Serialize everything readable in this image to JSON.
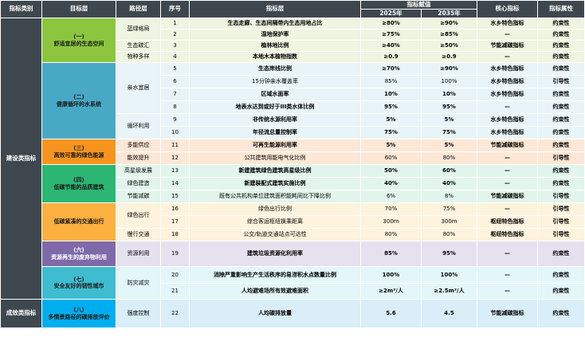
{
  "header": {
    "col_category": "指标类别",
    "col_target": "目标层",
    "col_path": "路径层",
    "col_no": "序号",
    "col_indicator": "指标层",
    "col_value": "指标赋值",
    "col_2025": "2025年",
    "col_2035": "2035年",
    "col_core": "核心指标",
    "col_attr": "指标属性"
  },
  "colors": {
    "header_bg": "#3e474d",
    "group1": "#8cc63f",
    "group2": "#48a9c5",
    "group3": "#f7941d",
    "group4": "#2bb673",
    "group5": "#fbb040",
    "group6": "#7e6aa8",
    "group7": "#3fbcd0",
    "group8": "#00aeef"
  },
  "categories": [
    {
      "label": "建设类指标",
      "rows": 21
    },
    {
      "label": "成效类指标",
      "rows": 1
    }
  ],
  "groups": [
    {
      "label": "(一)\n舒适宜居的生态空间",
      "rows": 4,
      "color": "#8cc63f",
      "light": "#eef5e0",
      "text": "#1a1a1a"
    },
    {
      "label": "(二)\n健康循环的水系统",
      "rows": 6,
      "color": "#48a9c5",
      "light": "#e8f4f8",
      "text": "#1a1a1a"
    },
    {
      "label": "(三)\n高效可靠的绿色能源",
      "rows": 2,
      "color": "#f7941d",
      "light": "#fde7d6",
      "text": "#1a1a1a"
    },
    {
      "label": "(四)\n低碳节能的品质建筑",
      "rows": 3,
      "color": "#2bb673",
      "light": "#e2f5ec",
      "text": "#1a1a1a"
    },
    {
      "label": "低碳紧凑的交通出行",
      "rows": 3,
      "color": "#fbb040",
      "light": "#fef3dd",
      "text": "#1a1a1a"
    },
    {
      "label": "(六)\n资源再生的废弃物利用",
      "rows": 1,
      "color": "#7e6aa8",
      "light": "#e6e1ef",
      "text": "#ffffff"
    },
    {
      "label": "(七)\n安全友好的韧性城市",
      "rows": 2,
      "color": "#3fbcd0",
      "light": "#e3f6f8",
      "text": "#1a1a1a"
    },
    {
      "label": "(八)\n多情景路径的碳排放评价",
      "rows": 1,
      "color": "#00aeef",
      "light": "#d9eef8",
      "text": "#1a1a1a"
    }
  ],
  "paths": [
    {
      "label": "蓝绿格局",
      "rows": 2
    },
    {
      "label": "生态碳汇",
      "rows": 1
    },
    {
      "label": "物种多样",
      "rows": 1
    },
    {
      "label": "亲水宜居",
      "rows": 4
    },
    {
      "label": "循环利用",
      "rows": 2
    },
    {
      "label": "多能供应",
      "rows": 1
    },
    {
      "label": "能效提升",
      "rows": 1
    },
    {
      "label": "高星级发展",
      "rows": 1
    },
    {
      "label": "绿色建造",
      "rows": 1
    },
    {
      "label": "节能减碳",
      "rows": 1
    },
    {
      "label": "绿色出行",
      "rows": 2
    },
    {
      "label": "慢行交通",
      "rows": 1
    },
    {
      "label": "资源利用",
      "rows": 1
    },
    {
      "label": "防灾减灾",
      "rows": 2
    },
    {
      "label": "强度控制",
      "rows": 1
    }
  ],
  "rows": [
    {
      "no": "1",
      "indicator": "生态走廊、生态间隔带内生态用地占比",
      "v2025": "≥80%",
      "v2035": "≥90%",
      "core": "水乡特色指标",
      "attr": "约束性",
      "bold": true
    },
    {
      "no": "2",
      "indicator": "湿地保护率",
      "v2025": "≥75%",
      "v2035": "≥85%",
      "core": "—",
      "attr": "约束性",
      "bold": true
    },
    {
      "no": "3",
      "indicator": "植林地比例",
      "v2025": "≥40%",
      "v2035": "≥50%",
      "core": "节能减碳指标",
      "attr": "约束性",
      "bold": true
    },
    {
      "no": "4",
      "indicator": "本地木本植物指数",
      "v2025": "≥0.9",
      "v2035": "≥0.9",
      "core": "—",
      "attr": "约束性",
      "bold": true
    },
    {
      "no": "5",
      "indicator": "生态岸线比例",
      "v2025": "≥70%",
      "v2035": "≥90%",
      "core": "水乡特色指标",
      "attr": "约束性",
      "bold": true
    },
    {
      "no": "6",
      "indicator": "15分钟亲水覆盖率",
      "v2025": "85%",
      "v2035": "100%",
      "core": "水乡特色指标",
      "attr": "引导性",
      "bold": false
    },
    {
      "no": "7",
      "indicator": "区域水面率",
      "v2025": "10%",
      "v2035": "10%",
      "core": "水乡特色指标",
      "attr": "约束性",
      "bold": true
    },
    {
      "no": "8",
      "indicator": "地表水达到或好于III类水体比例",
      "v2025": "95%",
      "v2035": "95%",
      "core": "—",
      "attr": "约束性",
      "bold": true
    },
    {
      "no": "9",
      "indicator": "非传统水源利用率",
      "v2025": "5%",
      "v2035": "5%",
      "core": "水乡特色指标",
      "attr": "约束性",
      "bold": true
    },
    {
      "no": "10",
      "indicator": "年径流总量控制率",
      "v2025": "75%",
      "v2035": "75%",
      "core": "水乡特色指标",
      "attr": "约束性",
      "bold": true
    },
    {
      "no": "11",
      "indicator": "可再生能源利用率",
      "v2025": "5%",
      "v2035": "5%",
      "core": "节能减碳指标",
      "attr": "约束性",
      "bold": true
    },
    {
      "no": "12",
      "indicator": "公共建筑用能电气化比例",
      "v2025": "60%",
      "v2035": "80%",
      "core": "—",
      "attr": "引导性",
      "bold": false
    },
    {
      "no": "13",
      "indicator": "新建建筑绿色建筑高星级比例",
      "v2025": "50%",
      "v2035": "60%",
      "core": "—",
      "attr": "约束性",
      "bold": true
    },
    {
      "no": "14",
      "indicator": "新建装配式建筑实施比例",
      "v2025": "40%",
      "v2035": "40%",
      "core": "—",
      "attr": "约束性",
      "bold": true
    },
    {
      "no": "15",
      "indicator": "既有公共机构单位建筑面积能耗同比下降比例",
      "v2025": "6%",
      "v2035": "8%",
      "core": "节能减碳指标",
      "attr": "引导性",
      "bold": false
    },
    {
      "no": "16",
      "indicator": "绿色出行比例",
      "v2025": "70%",
      "v2035": "75%",
      "core": "—",
      "attr": "引导性",
      "bold": false
    },
    {
      "no": "17",
      "indicator": "综合客运枢纽换乘距离",
      "v2025": "300m",
      "v2035": "300m",
      "core": "枢纽特色指标",
      "attr": "引导性",
      "bold": false
    },
    {
      "no": "18",
      "indicator": "公交/轨道交通站点可达性",
      "v2025": "80%",
      "v2035": "80%",
      "core": "枢纽特色指标",
      "attr": "引导性",
      "bold": false
    },
    {
      "no": "19",
      "indicator": "建筑垃圾资源化利用率",
      "v2025": "85%",
      "v2035": "95%",
      "core": "—",
      "attr": "约束性",
      "bold": true
    },
    {
      "no": "20",
      "indicator": "消除严重影响生产生活秩序的易涝积水点数量比例",
      "v2025": "100%",
      "v2035": "100%",
      "core": "—",
      "attr": "约束性",
      "bold": true
    },
    {
      "no": "21",
      "indicator": "人均避难场所有效避难面积",
      "v2025": "≥2m²/人",
      "v2035": "≥2.5m²/人",
      "core": "—",
      "attr": "约束性",
      "bold": true
    },
    {
      "no": "22",
      "indicator": "人均碳排放量",
      "v2025": "5.6",
      "v2035": "4.5",
      "core": "节能减碳指标",
      "attr": "约束性",
      "bold": true
    }
  ]
}
